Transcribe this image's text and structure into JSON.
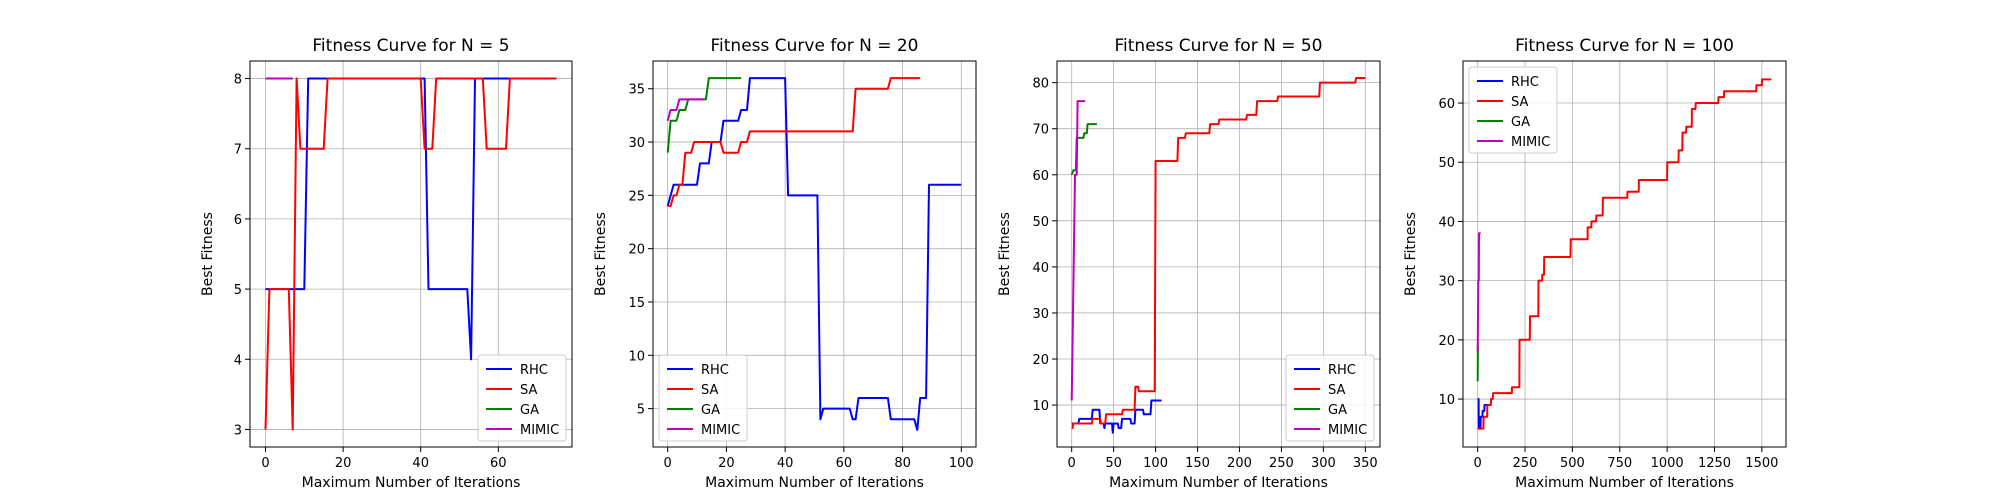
{
  "chart_data": [
    {
      "type": "line",
      "title": "Fitness Curve for N = 5",
      "xlabel": "Maximum Number of Iterations",
      "ylabel": "Best Fitness",
      "xlim": [
        -4,
        79
      ],
      "ylim": [
        2.75,
        8.25
      ],
      "xticks": [
        0,
        20,
        40,
        60
      ],
      "yticks": [
        3,
        4,
        5,
        6,
        7,
        8
      ],
      "grid": true,
      "legend": "lower right",
      "series": [
        {
          "name": "RHC",
          "color": "#0000ff",
          "steps": [
            [
              0,
              5
            ],
            [
              10,
              5
            ],
            [
              11,
              8
            ],
            [
              41,
              8
            ],
            [
              42,
              5
            ],
            [
              52,
              5
            ],
            [
              53,
              4
            ],
            [
              54,
              8
            ],
            [
              65,
              8
            ]
          ]
        },
        {
          "name": "SA",
          "color": "#ff0000",
          "steps": [
            [
              0,
              3
            ],
            [
              1,
              5
            ],
            [
              6,
              5
            ],
            [
              7,
              3
            ],
            [
              8,
              8
            ],
            [
              9,
              7
            ],
            [
              15,
              7
            ],
            [
              16,
              8
            ],
            [
              40,
              8
            ],
            [
              41,
              7
            ],
            [
              43,
              7
            ],
            [
              44,
              8
            ],
            [
              56,
              8
            ],
            [
              57,
              7
            ],
            [
              62,
              7
            ],
            [
              63,
              8
            ],
            [
              75,
              8
            ]
          ]
        },
        {
          "name": "GA",
          "color": "#008000",
          "steps": [
            [
              0,
              8
            ],
            [
              7,
              8
            ]
          ]
        },
        {
          "name": "MIMIC",
          "color": "#bf00bf",
          "steps": [
            [
              0,
              8
            ],
            [
              7,
              8
            ]
          ]
        }
      ]
    },
    {
      "type": "line",
      "title": "Fitness Curve for N = 20",
      "xlabel": "Maximum Number of Iterations",
      "ylabel": "Best Fitness",
      "xlim": [
        -5,
        105
      ],
      "ylim": [
        1.4,
        37.6
      ],
      "xticks": [
        0,
        20,
        40,
        60,
        80,
        100
      ],
      "yticks": [
        5,
        10,
        15,
        20,
        25,
        30,
        35
      ],
      "grid": true,
      "legend": "lower left",
      "series": [
        {
          "name": "RHC",
          "color": "#0000ff",
          "steps": [
            [
              0,
              24
            ],
            [
              2,
              26
            ],
            [
              10,
              26
            ],
            [
              11,
              28
            ],
            [
              14,
              28
            ],
            [
              15,
              30
            ],
            [
              18,
              30
            ],
            [
              19,
              32
            ],
            [
              24,
              32
            ],
            [
              25,
              33
            ],
            [
              27,
              33
            ],
            [
              28,
              36
            ],
            [
              40,
              36
            ],
            [
              41,
              25
            ],
            [
              51,
              25
            ],
            [
              52,
              4
            ],
            [
              53,
              5
            ],
            [
              62,
              5
            ],
            [
              63,
              4
            ],
            [
              64,
              4
            ],
            [
              65,
              6
            ],
            [
              75,
              6
            ],
            [
              76,
              4
            ],
            [
              84,
              4
            ],
            [
              85,
              3
            ],
            [
              86,
              6
            ],
            [
              88,
              6
            ],
            [
              89,
              26
            ],
            [
              100,
              26
            ]
          ]
        },
        {
          "name": "SA",
          "color": "#ff0000",
          "steps": [
            [
              0,
              24
            ],
            [
              1,
              24
            ],
            [
              2,
              25
            ],
            [
              3,
              25
            ],
            [
              4,
              26
            ],
            [
              5,
              26
            ],
            [
              6,
              29
            ],
            [
              8,
              29
            ],
            [
              9,
              30
            ],
            [
              18,
              30
            ],
            [
              19,
              29
            ],
            [
              24,
              29
            ],
            [
              25,
              30
            ],
            [
              27,
              30
            ],
            [
              28,
              31
            ],
            [
              63,
              31
            ],
            [
              64,
              35
            ],
            [
              75,
              35
            ],
            [
              76,
              36
            ],
            [
              86,
              36
            ]
          ]
        },
        {
          "name": "GA",
          "color": "#008000",
          "steps": [
            [
              0,
              29
            ],
            [
              1,
              32
            ],
            [
              3,
              32
            ],
            [
              4,
              33
            ],
            [
              6,
              33
            ],
            [
              7,
              34
            ],
            [
              13,
              34
            ],
            [
              14,
              36
            ],
            [
              25,
              36
            ]
          ]
        },
        {
          "name": "MIMIC",
          "color": "#bf00bf",
          "steps": [
            [
              0,
              32
            ],
            [
              1,
              33
            ],
            [
              3,
              33
            ],
            [
              4,
              34
            ],
            [
              12,
              34
            ]
          ]
        }
      ]
    },
    {
      "type": "line",
      "title": "Fitness Curve for N = 50",
      "xlabel": "Maximum Number of Iterations",
      "ylabel": "Best Fitness",
      "xlim": [
        -17.5,
        367.5
      ],
      "ylim": [
        0.9,
        84.7
      ],
      "xticks": [
        0,
        50,
        100,
        150,
        200,
        250,
        300,
        350
      ],
      "yticks": [
        10,
        20,
        30,
        40,
        50,
        60,
        70,
        80
      ],
      "grid": true,
      "legend": "lower right",
      "series": [
        {
          "name": "RHC",
          "color": "#0000ff",
          "steps": [
            [
              0,
              6
            ],
            [
              8,
              6
            ],
            [
              9,
              7
            ],
            [
              24,
              7
            ],
            [
              25,
              9
            ],
            [
              33,
              9
            ],
            [
              34,
              6
            ],
            [
              38,
              6
            ],
            [
              39,
              5
            ],
            [
              40,
              6
            ],
            [
              48,
              6
            ],
            [
              49,
              4
            ],
            [
              50,
              6
            ],
            [
              55,
              6
            ],
            [
              56,
              5
            ],
            [
              59,
              5
            ],
            [
              60,
              7
            ],
            [
              70,
              7
            ],
            [
              71,
              6
            ],
            [
              75,
              6
            ],
            [
              76,
              9
            ],
            [
              85,
              9
            ],
            [
              86,
              8
            ],
            [
              94,
              8
            ],
            [
              95,
              11
            ],
            [
              107,
              11
            ]
          ]
        },
        {
          "name": "SA",
          "color": "#ff0000",
          "steps": [
            [
              0,
              5
            ],
            [
              1,
              5
            ],
            [
              2,
              6
            ],
            [
              24,
              6
            ],
            [
              25,
              7
            ],
            [
              34,
              7
            ],
            [
              35,
              6
            ],
            [
              40,
              6
            ],
            [
              41,
              8
            ],
            [
              60,
              8
            ],
            [
              61,
              9
            ],
            [
              75,
              9
            ],
            [
              76,
              14
            ],
            [
              79,
              14
            ],
            [
              80,
              13
            ],
            [
              99,
              13
            ],
            [
              100,
              63
            ],
            [
              126,
              63
            ],
            [
              127,
              68
            ],
            [
              135,
              68
            ],
            [
              136,
              69
            ],
            [
              164,
              69
            ],
            [
              165,
              71
            ],
            [
              175,
              71
            ],
            [
              176,
              72
            ],
            [
              208,
              72
            ],
            [
              209,
              73
            ],
            [
              220,
              73
            ],
            [
              221,
              76
            ],
            [
              245,
              76
            ],
            [
              246,
              77
            ],
            [
              295,
              77
            ],
            [
              296,
              80
            ],
            [
              338,
              80
            ],
            [
              339,
              81
            ],
            [
              350,
              81
            ]
          ]
        },
        {
          "name": "GA",
          "color": "#008000",
          "steps": [
            [
              0,
              60
            ],
            [
              2,
              61
            ],
            [
              5,
              61
            ],
            [
              6,
              68
            ],
            [
              14,
              68
            ],
            [
              15,
              69
            ],
            [
              18,
              69
            ],
            [
              19,
              71
            ],
            [
              30,
              71
            ]
          ]
        },
        {
          "name": "MIMIC",
          "color": "#bf00bf",
          "steps": [
            [
              0,
              11
            ],
            [
              4,
              60
            ],
            [
              6,
              60
            ],
            [
              7,
              76
            ],
            [
              16,
              76
            ]
          ]
        }
      ]
    },
    {
      "type": "line",
      "title": "Fitness Curve for N = 100",
      "xlabel": "Maximum Number of Iterations",
      "ylabel": "Best Fitness",
      "xlim": [
        -77.5,
        1627.5
      ],
      "ylim": [
        1.9,
        67.1
      ],
      "xticks": [
        0,
        250,
        500,
        750,
        1000,
        1250,
        1500
      ],
      "yticks": [
        10,
        20,
        30,
        40,
        50,
        60
      ],
      "grid": true,
      "legend": "upper left",
      "series": [
        {
          "name": "RHC",
          "color": "#0000ff",
          "steps": [
            [
              0,
              10
            ],
            [
              5,
              10
            ],
            [
              6,
              5
            ],
            [
              15,
              5
            ],
            [
              16,
              7
            ],
            [
              25,
              7
            ],
            [
              26,
              8
            ],
            [
              35,
              8
            ],
            [
              36,
              9
            ],
            [
              50,
              9
            ]
          ]
        },
        {
          "name": "SA",
          "color": "#ff0000",
          "steps": [
            [
              0,
              5
            ],
            [
              30,
              5
            ],
            [
              31,
              7
            ],
            [
              50,
              7
            ],
            [
              51,
              9
            ],
            [
              70,
              9
            ],
            [
              71,
              10
            ],
            [
              80,
              10
            ],
            [
              81,
              11
            ],
            [
              180,
              11
            ],
            [
              181,
              12
            ],
            [
              220,
              12
            ],
            [
              221,
              20
            ],
            [
              275,
              20
            ],
            [
              276,
              24
            ],
            [
              320,
              24
            ],
            [
              321,
              30
            ],
            [
              340,
              30
            ],
            [
              341,
              31
            ],
            [
              350,
              31
            ],
            [
              351,
              34
            ],
            [
              490,
              34
            ],
            [
              491,
              37
            ],
            [
              580,
              37
            ],
            [
              581,
              39
            ],
            [
              600,
              39
            ],
            [
              601,
              40
            ],
            [
              625,
              40
            ],
            [
              626,
              41
            ],
            [
              660,
              41
            ],
            [
              661,
              44
            ],
            [
              790,
              44
            ],
            [
              791,
              45
            ],
            [
              850,
              45
            ],
            [
              851,
              47
            ],
            [
              1000,
              47
            ],
            [
              1001,
              50
            ],
            [
              1060,
              50
            ],
            [
              1061,
              52
            ],
            [
              1080,
              52
            ],
            [
              1081,
              55
            ],
            [
              1100,
              55
            ],
            [
              1101,
              56
            ],
            [
              1130,
              56
            ],
            [
              1131,
              59
            ],
            [
              1150,
              59
            ],
            [
              1151,
              60
            ],
            [
              1270,
              60
            ],
            [
              1271,
              61
            ],
            [
              1300,
              61
            ],
            [
              1301,
              62
            ],
            [
              1470,
              62
            ],
            [
              1471,
              63
            ],
            [
              1500,
              63
            ],
            [
              1501,
              64
            ],
            [
              1550,
              64
            ]
          ]
        },
        {
          "name": "GA",
          "color": "#008000",
          "steps": [
            [
              0,
              13
            ],
            [
              1,
              19
            ],
            [
              5,
              19
            ]
          ]
        },
        {
          "name": "MIMIC",
          "color": "#bf00bf",
          "steps": [
            [
              0,
              18
            ],
            [
              3,
              30
            ],
            [
              6,
              30
            ],
            [
              7,
              38
            ],
            [
              16,
              38
            ]
          ]
        }
      ]
    }
  ]
}
